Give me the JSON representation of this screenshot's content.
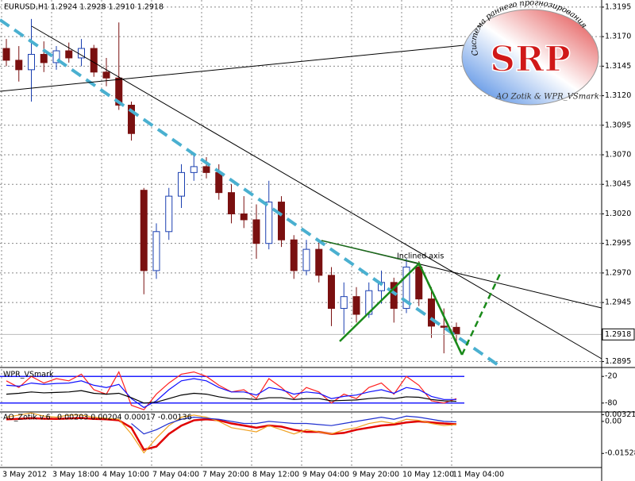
{
  "chart_data": [
    {
      "type": "candlestick",
      "title": "EURUSD,H1",
      "header_values": "1.2924 1.2928 1.2910 1.2918",
      "categories": [
        "3 May 2012",
        null,
        null,
        null,
        "3 May 18:00",
        null,
        null,
        null,
        "4 May 10:00",
        null,
        null,
        null,
        "7 May 04:00",
        null,
        null,
        null,
        "7 May 20:00",
        null,
        null,
        null,
        "8 May 12:00",
        null,
        null,
        null,
        "9 May 04:00",
        null,
        null,
        null,
        "9 May 20:00",
        null,
        null,
        null,
        "10 May 12:00",
        null,
        null,
        null,
        "11 May 04:00"
      ],
      "open": [
        1.316,
        1.315,
        1.3142,
        1.3155,
        1.3148,
        1.3158,
        1.3152,
        1.316,
        1.314,
        1.3135,
        1.3112,
        1.304,
        1.2972,
        1.3005,
        1.3035,
        1.3055,
        1.306,
        1.3055,
        1.3038,
        1.302,
        1.3015,
        1.2995,
        1.303,
        1.2998,
        1.2972,
        1.299,
        1.2968,
        1.294,
        1.295,
        1.2935,
        1.2955,
        1.2962,
        1.294,
        1.2975,
        1.2948,
        1.2925,
        1.2924
      ],
      "high": [
        1.3168,
        1.3162,
        1.3185,
        1.3166,
        1.3162,
        1.3165,
        1.3168,
        1.3163,
        1.3152,
        1.3182,
        1.3115,
        1.3042,
        1.3012,
        1.3042,
        1.3062,
        1.3072,
        1.3068,
        1.3062,
        1.3045,
        1.3035,
        1.3028,
        1.3048,
        1.3035,
        1.3002,
        1.2998,
        1.2998,
        1.2975,
        1.2962,
        1.2958,
        1.2962,
        1.2972,
        1.2966,
        1.2982,
        1.298,
        1.2958,
        1.294,
        1.2928
      ],
      "low": [
        1.3145,
        1.3132,
        1.3115,
        1.314,
        1.3142,
        1.3148,
        1.3145,
        1.3136,
        1.3128,
        1.3108,
        1.3082,
        1.2952,
        1.2965,
        1.2998,
        1.3025,
        1.3048,
        1.305,
        1.3032,
        1.3012,
        1.3008,
        1.2982,
        1.299,
        1.2992,
        1.2965,
        1.2968,
        1.2962,
        1.2925,
        1.2918,
        1.2928,
        1.2932,
        1.2944,
        1.2928,
        1.2936,
        1.2942,
        1.2915,
        1.2902,
        1.291
      ],
      "close": [
        1.315,
        1.3142,
        1.3155,
        1.3148,
        1.3158,
        1.3152,
        1.316,
        1.314,
        1.3135,
        1.3112,
        1.3088,
        1.2972,
        1.3005,
        1.3035,
        1.3055,
        1.306,
        1.3055,
        1.3038,
        1.302,
        1.3015,
        1.2995,
        1.303,
        1.2998,
        1.2972,
        1.299,
        1.2968,
        1.294,
        1.295,
        1.2935,
        1.2955,
        1.2962,
        1.294,
        1.2975,
        1.2948,
        1.2925,
        1.2924,
        1.2918
      ],
      "up_color": "#1a3fb0",
      "down_color": "#7a1010",
      "ylim": [
        1.289,
        1.3201
      ],
      "yticks": [
        1.3195,
        {
          "value": 1.317,
          "label": "1.3170"
        },
        1.3145,
        {
          "value": 1.312,
          "label": "1.3120"
        },
        1.3095,
        {
          "value": 1.307,
          "label": "1.3070"
        },
        1.3045,
        {
          "value": 1.302,
          "label": "1.3020"
        },
        1.2995,
        {
          "value": 1.297,
          "label": "1.2970"
        },
        1.2945,
        1.2895
      ],
      "current_price": 1.2918,
      "annotation": "Inclined axis",
      "grid": true
    },
    {
      "type": "line",
      "title": "WPR_VSmark",
      "series": [
        {
          "color": "#ff2020",
          "values": [
            -30,
            -45,
            -20,
            -35,
            -25,
            -30,
            -15,
            -50,
            -60,
            -10,
            -85,
            -95,
            -60,
            -35,
            -15,
            -10,
            -20,
            -40,
            -55,
            -50,
            -70,
            -25,
            -45,
            -70,
            -45,
            -55,
            -80,
            -60,
            -70,
            -45,
            -35,
            -60,
            -20,
            -40,
            -75,
            -80,
            -70
          ]
        },
        {
          "color": "#1010ff",
          "values": [
            -40,
            -42,
            -35,
            -38,
            -36,
            -35,
            -30,
            -40,
            -45,
            -38,
            -70,
            -90,
            -75,
            -50,
            -30,
            -25,
            -30,
            -45,
            -55,
            -55,
            -62,
            -45,
            -50,
            -60,
            -55,
            -58,
            -70,
            -65,
            -62,
            -55,
            -50,
            -58,
            -45,
            -50,
            -65,
            -72,
            -72
          ]
        },
        {
          "color": "#000000",
          "values": [
            -60,
            -58,
            -55,
            -57,
            -56,
            -55,
            -52,
            -58,
            -60,
            -58,
            -68,
            -80,
            -78,
            -70,
            -62,
            -58,
            -60,
            -66,
            -70,
            -70,
            -72,
            -68,
            -68,
            -72,
            -70,
            -70,
            -75,
            -74,
            -73,
            -70,
            -68,
            -70,
            -66,
            -67,
            -72,
            -75,
            -76
          ]
        }
      ],
      "ylim": [
        -100,
        0
      ],
      "yticks": [
        -20,
        -80
      ],
      "level_color": "#2020ff"
    },
    {
      "type": "line",
      "title": "AO_Zotik v.6",
      "header_values": "0.00203 0.00204 0.00017 -0.00136",
      "series": [
        {
          "color": "#e00000",
          "values": [
            0.001,
            0.0012,
            0.0015,
            0.0013,
            0.0012,
            0.0014,
            0.0016,
            0.0012,
            0.001,
            0.0005,
            -0.003,
            -0.0135,
            -0.012,
            -0.006,
            -0.002,
            0.0005,
            0.001,
            0.0005,
            -0.001,
            -0.002,
            -0.003,
            -0.002,
            -0.0025,
            -0.004,
            -0.005,
            -0.005,
            -0.006,
            -0.0055,
            -0.004,
            -0.003,
            -0.002,
            -0.0015,
            -0.0005,
            0,
            -0.0005,
            -0.001,
            -0.00136
          ]
        },
        {
          "color": "#f0a020",
          "values": [
            0.002,
            0.003,
            0.004,
            0.0025,
            0.002,
            0.003,
            0.003,
            0.002,
            0.0015,
            0.001,
            -0.006,
            -0.015,
            -0.008,
            -0.002,
            0.002,
            0.003,
            0.002,
            0,
            -0.003,
            -0.004,
            -0.005,
            -0.002,
            -0.004,
            -0.006,
            -0.004,
            -0.005,
            -0.006,
            -0.004,
            -0.003,
            -0.001,
            0,
            -0.001,
            0.001,
            0.0005,
            -0.001,
            -0.002,
            -0.0015
          ]
        },
        {
          "color": "#2030d0",
          "values": [
            null,
            null,
            null,
            null,
            null,
            null,
            null,
            null,
            null,
            null,
            -0.001,
            -0.006,
            -0.004,
            -0.001,
            0.001,
            0.002,
            0.0015,
            0.001,
            0,
            -0.001,
            -0.001,
            0,
            -0.0005,
            -0.001,
            -0.001,
            -0.0015,
            -0.002,
            -0.001,
            0,
            0.001,
            0.002,
            0.001,
            0.0025,
            0.002,
            0.001,
            0,
            -0.0002
          ]
        }
      ],
      "ylim": [
        -0.022,
        0.0045
      ],
      "yticks": [
        0.00321,
        {
          "value": 0,
          "label": "0.00"
        },
        -0.01528
      ]
    }
  ],
  "logo": {
    "caption": "Система раннего прогнозирования",
    "title": "SRP",
    "credit": "AO Zotik & WPR_VSmark"
  }
}
